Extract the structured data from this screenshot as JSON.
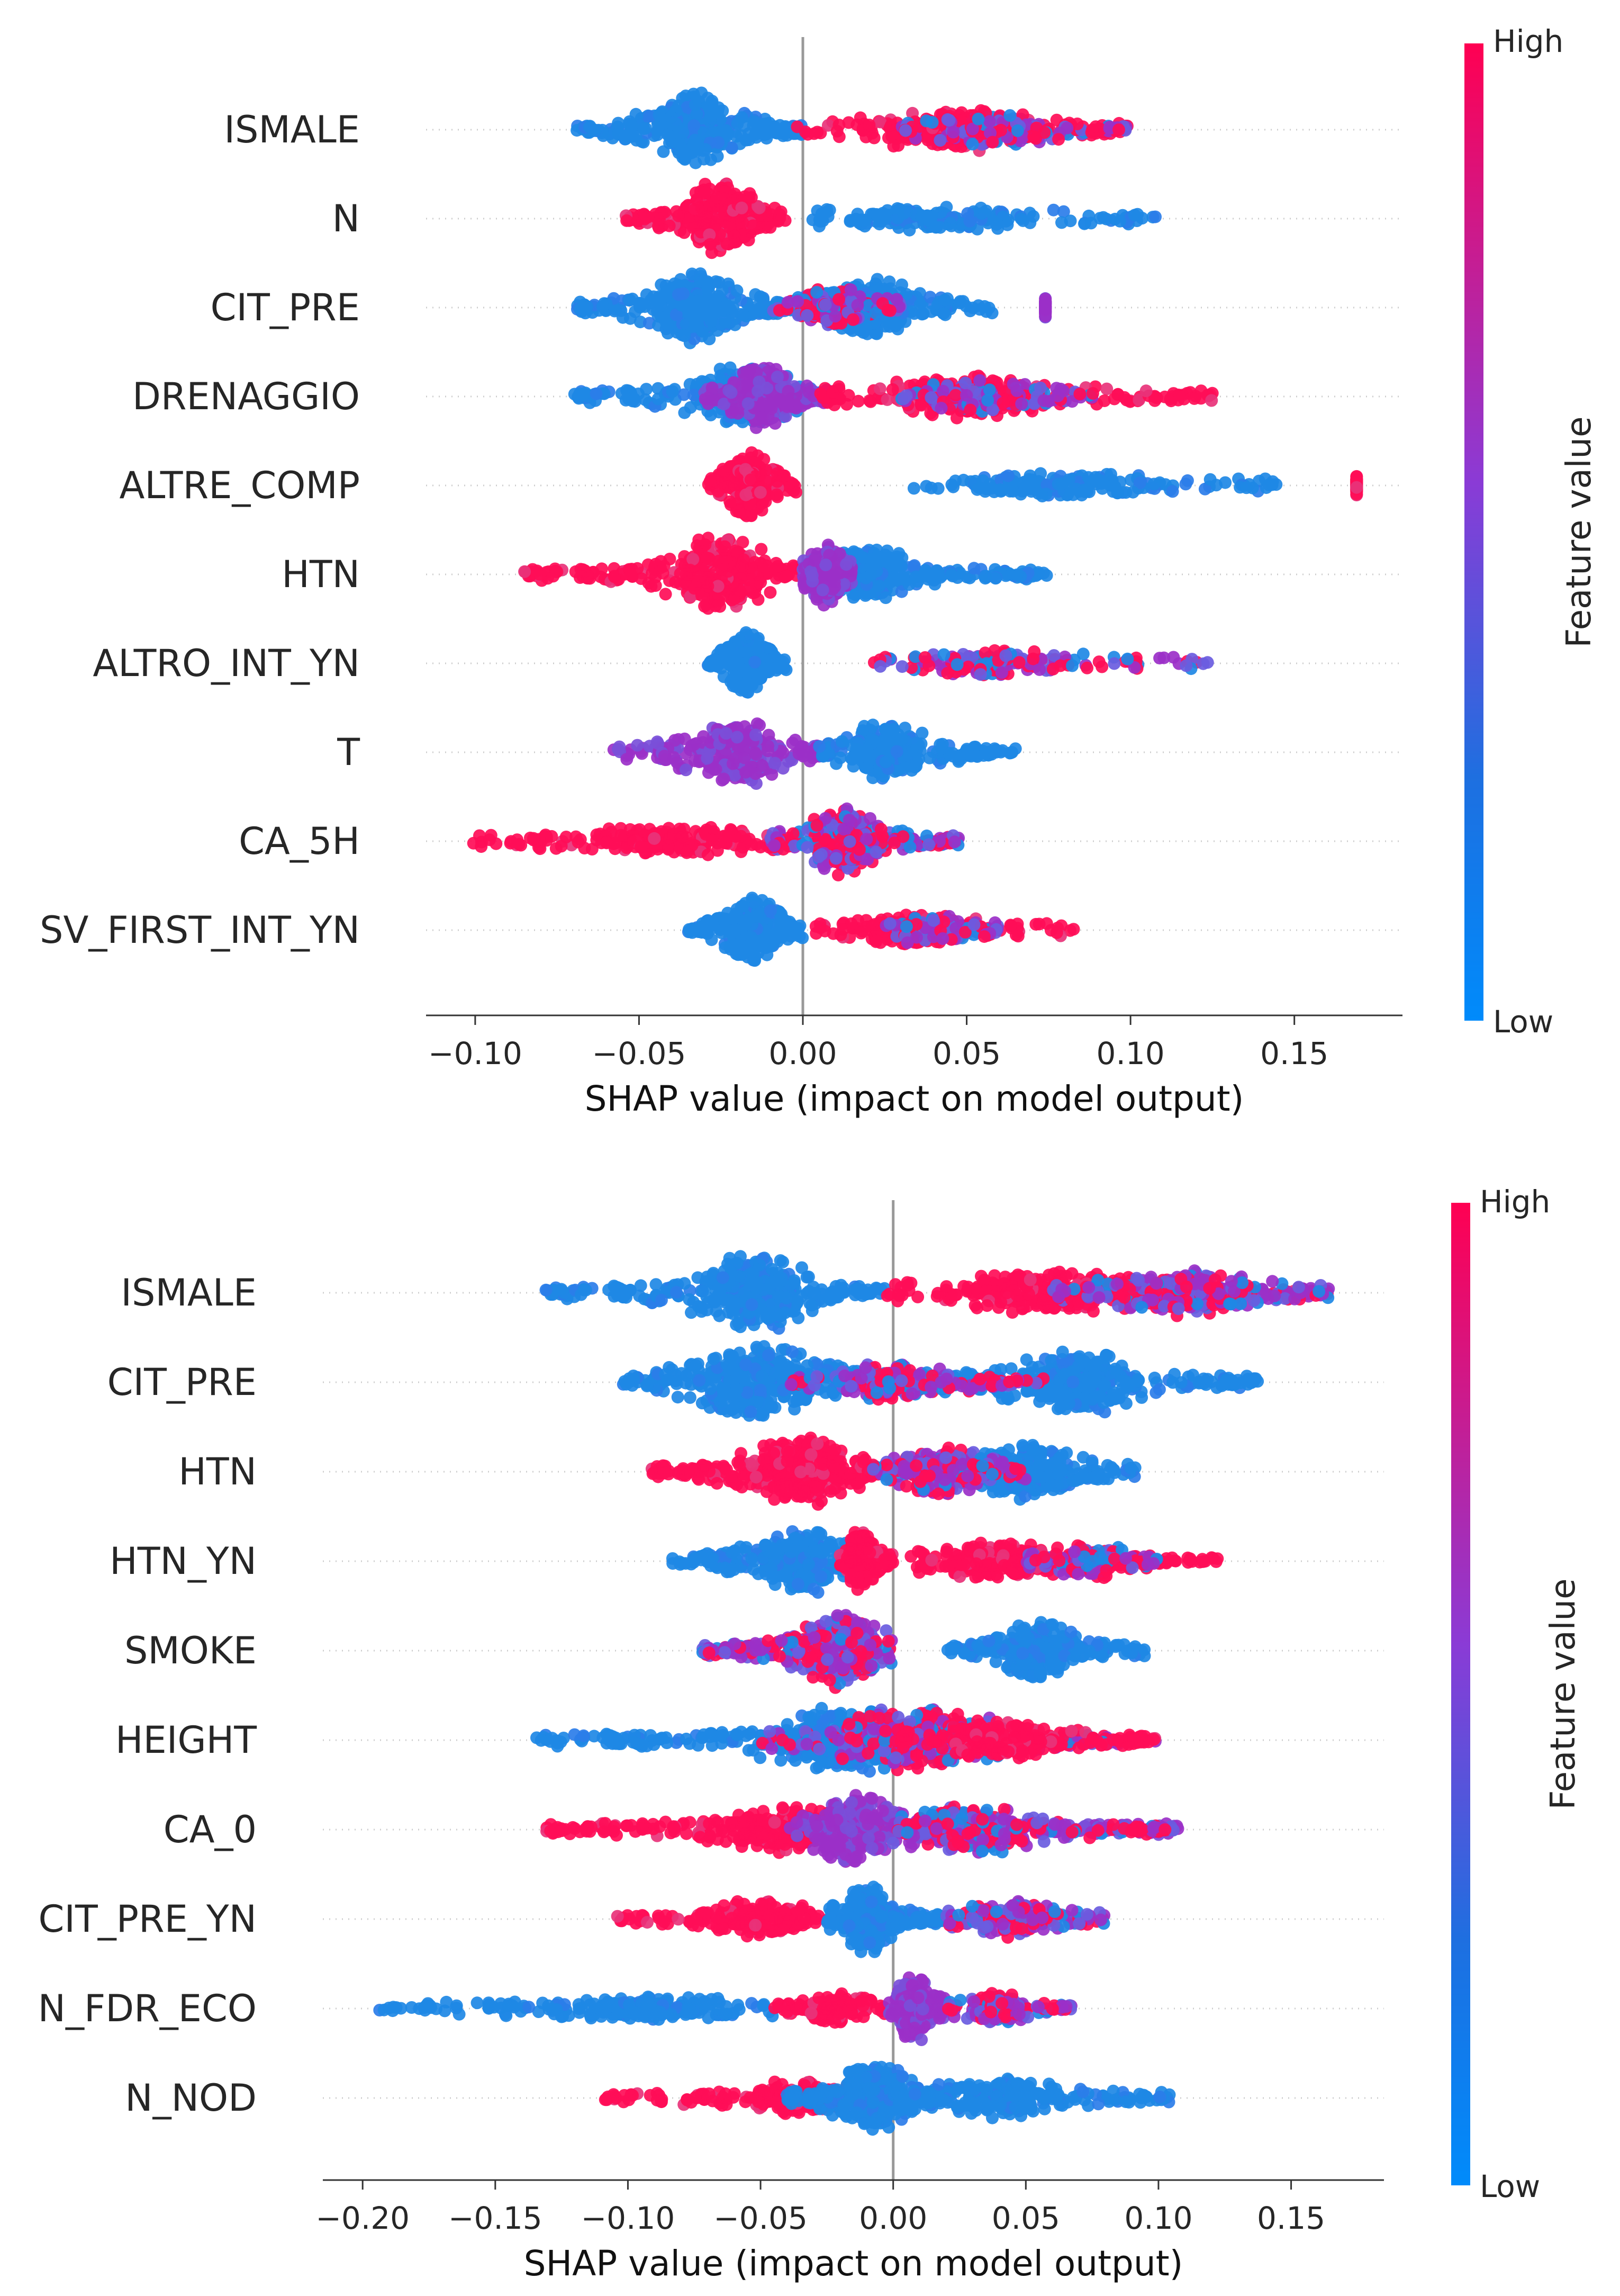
{
  "colors": {
    "low": "#1e88e5",
    "high": "#ff0d57",
    "mid": "#9b30c8",
    "axis": "#333333",
    "zero": "#999999",
    "guide": "#cccccc"
  },
  "chart_data": [
    {
      "type": "scatter",
      "subtype": "shap-beeswarm",
      "xlabel": "SHAP value (impact on model output)",
      "xlim": [
        -0.115,
        0.183
      ],
      "ticks": [
        -0.1,
        -0.05,
        0.0,
        0.05,
        0.1,
        0.15
      ],
      "tick_labels": [
        "−0.10",
        "−0.05",
        "0.00",
        "0.05",
        "0.10",
        "0.15"
      ],
      "colorbar": {
        "title": "Feature value",
        "high_label": "High",
        "low_label": "Low"
      },
      "features": [
        {
          "name": "ISMALE",
          "clusters": [
            {
              "from": -0.069,
              "to": 0.0,
              "center": -0.033,
              "width": 0.012,
              "color": "low",
              "height": 1.0
            },
            {
              "from": -0.003,
              "to": 0.1,
              "center": 0.045,
              "width": 0.02,
              "color": "high",
              "height": 0.5
            },
            {
              "from": 0.03,
              "to": 0.1,
              "center": 0.06,
              "width": 0.015,
              "color": "mix",
              "height": 0.35
            }
          ]
        },
        {
          "name": "N",
          "clusters": [
            {
              "from": -0.054,
              "to": -0.005,
              "center": -0.025,
              "width": 0.01,
              "color": "high",
              "height": 1.0
            },
            {
              "from": 0.002,
              "to": 0.109,
              "center": 0.04,
              "width": 0.03,
              "color": "low",
              "height": 0.22
            }
          ]
        },
        {
          "name": "CIT_PRE",
          "clusters": [
            {
              "from": -0.069,
              "to": 0.0,
              "center": -0.033,
              "width": 0.012,
              "color": "low",
              "height": 0.95
            },
            {
              "from": -0.01,
              "to": 0.058,
              "center": 0.022,
              "width": 0.012,
              "color": "low",
              "height": 0.75
            },
            {
              "from": -0.01,
              "to": 0.03,
              "center": 0.01,
              "width": 0.01,
              "color": "mix",
              "height": 0.45
            },
            {
              "from": 0.074,
              "to": 0.074,
              "center": 0.074,
              "width": 0.001,
              "color": "mid",
              "height": 0.1
            }
          ]
        },
        {
          "name": "DRENAGGIO",
          "clusters": [
            {
              "from": -0.07,
              "to": 0.01,
              "center": -0.018,
              "width": 0.015,
              "color": "low",
              "height": 0.75
            },
            {
              "from": -0.03,
              "to": 0.01,
              "center": -0.012,
              "width": 0.008,
              "color": "mid",
              "height": 0.9
            },
            {
              "from": 0.005,
              "to": 0.126,
              "center": 0.05,
              "width": 0.025,
              "color": "high",
              "height": 0.5
            },
            {
              "from": 0.03,
              "to": 0.09,
              "center": 0.055,
              "width": 0.015,
              "color": "mix",
              "height": 0.35
            }
          ]
        },
        {
          "name": "ALTRE_COMP",
          "clusters": [
            {
              "from": -0.029,
              "to": -0.002,
              "center": -0.016,
              "width": 0.006,
              "color": "high",
              "height": 0.9
            },
            {
              "from": 0.031,
              "to": 0.145,
              "center": 0.08,
              "width": 0.03,
              "color": "low",
              "height": 0.2
            },
            {
              "from": 0.169,
              "to": 0.169,
              "center": 0.169,
              "width": 0.001,
              "color": "high",
              "height": 0.1
            }
          ]
        },
        {
          "name": "HTN",
          "clusters": [
            {
              "from": -0.085,
              "to": 0.0,
              "center": -0.025,
              "width": 0.014,
              "color": "high",
              "height": 1.0
            },
            {
              "from": 0.0,
              "to": 0.075,
              "center": 0.02,
              "width": 0.012,
              "color": "low",
              "height": 0.75
            },
            {
              "from": 0.0,
              "to": 0.015,
              "center": 0.007,
              "width": 0.005,
              "color": "mid",
              "height": 0.8
            }
          ]
        },
        {
          "name": "ALTRO_INT_YN",
          "clusters": [
            {
              "from": -0.029,
              "to": -0.005,
              "center": -0.017,
              "width": 0.005,
              "color": "low",
              "height": 0.85
            },
            {
              "from": 0.021,
              "to": 0.124,
              "center": 0.06,
              "width": 0.025,
              "color": "mix",
              "height": 0.22
            }
          ]
        },
        {
          "name": "T",
          "clusters": [
            {
              "from": -0.058,
              "to": 0.01,
              "center": -0.02,
              "width": 0.013,
              "color": "mid",
              "height": 0.85
            },
            {
              "from": 0.005,
              "to": 0.067,
              "center": 0.025,
              "width": 0.013,
              "color": "low",
              "height": 0.7
            }
          ]
        },
        {
          "name": "CA_5H",
          "clusters": [
            {
              "from": -0.101,
              "to": 0.0,
              "center": -0.04,
              "width": 0.025,
              "color": "high",
              "height": 0.35
            },
            {
              "from": -0.01,
              "to": 0.048,
              "center": 0.012,
              "width": 0.01,
              "color": "mix",
              "height": 0.9
            }
          ]
        },
        {
          "name": "SV_FIRST_INT_YN",
          "clusters": [
            {
              "from": -0.035,
              "to": 0.0,
              "center": -0.015,
              "width": 0.007,
              "color": "low",
              "height": 0.9
            },
            {
              "from": 0.002,
              "to": 0.083,
              "center": 0.035,
              "width": 0.02,
              "color": "high",
              "height": 0.3
            },
            {
              "from": 0.02,
              "to": 0.06,
              "center": 0.04,
              "width": 0.01,
              "color": "mix",
              "height": 0.3
            }
          ]
        }
      ]
    },
    {
      "type": "scatter",
      "subtype": "shap-beeswarm",
      "xlabel": "SHAP value (impact on model output)",
      "xlim": [
        -0.215,
        0.185
      ],
      "ticks": [
        -0.2,
        -0.15,
        -0.1,
        -0.05,
        0.0,
        0.05,
        0.1,
        0.15
      ],
      "tick_labels": [
        "−0.20",
        "−0.15",
        "−0.10",
        "−0.05",
        "0.00",
        "0.05",
        "0.10",
        "0.15"
      ],
      "colorbar": {
        "title": "Feature value",
        "high_label": "High",
        "low_label": "Low"
      },
      "features": [
        {
          "name": "ISMALE",
          "clusters": [
            {
              "from": -0.131,
              "to": -0.002,
              "center": -0.052,
              "width": 0.02,
              "color": "low",
              "height": 1.0
            },
            {
              "from": -0.003,
              "to": 0.165,
              "center": 0.06,
              "width": 0.035,
              "color": "high",
              "height": 0.55
            },
            {
              "from": 0.06,
              "to": 0.165,
              "center": 0.11,
              "width": 0.025,
              "color": "mix",
              "height": 0.55
            }
          ]
        },
        {
          "name": "CIT_PRE",
          "clusters": [
            {
              "from": -0.102,
              "to": 0.0,
              "center": -0.05,
              "width": 0.022,
              "color": "low",
              "height": 1.0
            },
            {
              "from": 0.0,
              "to": 0.138,
              "center": 0.07,
              "width": 0.022,
              "color": "low",
              "height": 0.8
            },
            {
              "from": -0.04,
              "to": 0.06,
              "center": 0.0,
              "width": 0.02,
              "color": "mix",
              "height": 0.4
            }
          ]
        },
        {
          "name": "HTN",
          "clusters": [
            {
              "from": -0.091,
              "to": -0.005,
              "center": -0.035,
              "width": 0.018,
              "color": "high",
              "height": 1.0
            },
            {
              "from": -0.005,
              "to": 0.092,
              "center": 0.05,
              "width": 0.018,
              "color": "low",
              "height": 0.7
            },
            {
              "from": -0.01,
              "to": 0.05,
              "center": 0.02,
              "width": 0.015,
              "color": "mix",
              "height": 0.6
            }
          ]
        },
        {
          "name": "HTN_YN",
          "clusters": [
            {
              "from": -0.085,
              "to": -0.01,
              "center": -0.035,
              "width": 0.015,
              "color": "low",
              "height": 0.85
            },
            {
              "from": -0.02,
              "to": 0.125,
              "center": 0.04,
              "width": 0.025,
              "color": "high",
              "height": 0.4
            },
            {
              "from": -0.02,
              "to": 0.0,
              "center": -0.012,
              "width": 0.005,
              "color": "high",
              "height": 0.8
            },
            {
              "from": 0.05,
              "to": 0.1,
              "center": 0.075,
              "width": 0.012,
              "color": "mix",
              "height": 0.4
            }
          ]
        },
        {
          "name": "SMOKE",
          "clusters": [
            {
              "from": -0.072,
              "to": 0.0,
              "center": -0.02,
              "width": 0.015,
              "color": "mix",
              "height": 1.0
            },
            {
              "from": 0.02,
              "to": 0.095,
              "center": 0.055,
              "width": 0.012,
              "color": "low",
              "height": 0.75
            }
          ]
        },
        {
          "name": "HEIGHT",
          "clusters": [
            {
              "from": -0.135,
              "to": 0.0,
              "center": -0.02,
              "width": 0.025,
              "color": "low",
              "height": 0.85
            },
            {
              "from": -0.05,
              "to": 0.1,
              "center": 0.01,
              "width": 0.03,
              "color": "mix",
              "height": 0.85
            },
            {
              "from": 0.0,
              "to": 0.1,
              "center": 0.04,
              "width": 0.02,
              "color": "high",
              "height": 0.45
            }
          ]
        },
        {
          "name": "CA_0",
          "clusters": [
            {
              "from": -0.131,
              "to": 0.0,
              "center": -0.04,
              "width": 0.025,
              "color": "high",
              "height": 0.55
            },
            {
              "from": -0.04,
              "to": 0.108,
              "center": -0.015,
              "width": 0.015,
              "color": "mid",
              "height": 0.95
            },
            {
              "from": 0.0,
              "to": 0.108,
              "center": 0.03,
              "width": 0.025,
              "color": "mix",
              "height": 0.55
            }
          ]
        },
        {
          "name": "CIT_PRE_YN",
          "clusters": [
            {
              "from": -0.104,
              "to": -0.02,
              "center": -0.05,
              "width": 0.018,
              "color": "high",
              "height": 0.4
            },
            {
              "from": -0.025,
              "to": 0.02,
              "center": -0.01,
              "width": 0.008,
              "color": "low",
              "height": 1.0
            },
            {
              "from": 0.02,
              "to": 0.08,
              "center": 0.045,
              "width": 0.015,
              "color": "mix",
              "height": 0.4
            }
          ]
        },
        {
          "name": "N_FDR_ECO",
          "clusters": [
            {
              "from": -0.194,
              "to": -0.045,
              "center": -0.09,
              "width": 0.035,
              "color": "low",
              "height": 0.2
            },
            {
              "from": -0.045,
              "to": -0.002,
              "center": -0.02,
              "width": 0.01,
              "color": "high",
              "height": 0.3
            },
            {
              "from": -0.002,
              "to": 0.02,
              "center": 0.008,
              "width": 0.006,
              "color": "mid",
              "height": 0.85
            },
            {
              "from": 0.02,
              "to": 0.068,
              "center": 0.04,
              "width": 0.01,
              "color": "mix",
              "height": 0.3
            }
          ]
        },
        {
          "name": "N_NOD",
          "clusters": [
            {
              "from": -0.11,
              "to": -0.01,
              "center": -0.035,
              "width": 0.02,
              "color": "high",
              "height": 0.35
            },
            {
              "from": -0.04,
              "to": 0.02,
              "center": -0.007,
              "width": 0.012,
              "color": "low",
              "height": 1.0
            },
            {
              "from": 0.0,
              "to": 0.105,
              "center": 0.04,
              "width": 0.022,
              "color": "low",
              "height": 0.45
            }
          ]
        }
      ]
    }
  ]
}
